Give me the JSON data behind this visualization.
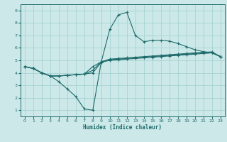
{
  "xlabel": "Humidex (Indice chaleur)",
  "bg_color": "#cce8e8",
  "grid_color": "#9fcfcf",
  "line_color": "#1e6b6b",
  "xlim": [
    -0.5,
    23.5
  ],
  "ylim": [
    0.5,
    9.5
  ],
  "xticks": [
    0,
    1,
    2,
    3,
    4,
    5,
    6,
    7,
    8,
    9,
    10,
    11,
    12,
    13,
    14,
    15,
    16,
    17,
    18,
    19,
    20,
    21,
    22,
    23
  ],
  "yticks": [
    1,
    2,
    3,
    4,
    5,
    6,
    7,
    8,
    9
  ],
  "line1_x": [
    0,
    1,
    2,
    3,
    4,
    5,
    6,
    7,
    8,
    9,
    10,
    11,
    12,
    13,
    14,
    15,
    16,
    17,
    18,
    19,
    20,
    21,
    22,
    23
  ],
  "line1_y": [
    4.5,
    4.35,
    4.0,
    3.75,
    3.75,
    3.8,
    3.85,
    3.9,
    4.0,
    4.85,
    5.0,
    5.05,
    5.1,
    5.15,
    5.2,
    5.25,
    5.3,
    5.35,
    5.4,
    5.45,
    5.5,
    5.55,
    5.6,
    5.3
  ],
  "line2_x": [
    0,
    1,
    2,
    3,
    4,
    5,
    6,
    7,
    8,
    9,
    10,
    11,
    12,
    13,
    14,
    15,
    16,
    17,
    18,
    19,
    20,
    21,
    22,
    23
  ],
  "line2_y": [
    4.5,
    4.35,
    4.0,
    3.75,
    3.3,
    2.7,
    2.1,
    1.1,
    1.0,
    4.9,
    7.5,
    8.65,
    8.85,
    7.0,
    6.5,
    6.6,
    6.6,
    6.55,
    6.35,
    6.1,
    5.85,
    5.7,
    5.6,
    5.3
  ],
  "line3_x": [
    0,
    1,
    2,
    3,
    4,
    5,
    6,
    7,
    8,
    9,
    10,
    11,
    12,
    13,
    14,
    15,
    16,
    17,
    18,
    19,
    20,
    21,
    22,
    23
  ],
  "line3_y": [
    4.5,
    4.35,
    4.0,
    3.75,
    3.75,
    3.8,
    3.85,
    3.9,
    4.2,
    4.9,
    5.05,
    5.1,
    5.15,
    5.2,
    5.25,
    5.3,
    5.35,
    5.4,
    5.45,
    5.5,
    5.55,
    5.6,
    5.62,
    5.3
  ],
  "line4_x": [
    0,
    1,
    2,
    3,
    4,
    5,
    6,
    7,
    8,
    9,
    10,
    11,
    12,
    13,
    14,
    15,
    16,
    17,
    18,
    19,
    20,
    21,
    22,
    23
  ],
  "line4_y": [
    4.5,
    4.35,
    4.0,
    3.75,
    3.75,
    3.8,
    3.85,
    3.9,
    4.5,
    4.88,
    5.1,
    5.15,
    5.2,
    5.25,
    5.3,
    5.35,
    5.4,
    5.45,
    5.5,
    5.55,
    5.6,
    5.65,
    5.68,
    5.3
  ]
}
